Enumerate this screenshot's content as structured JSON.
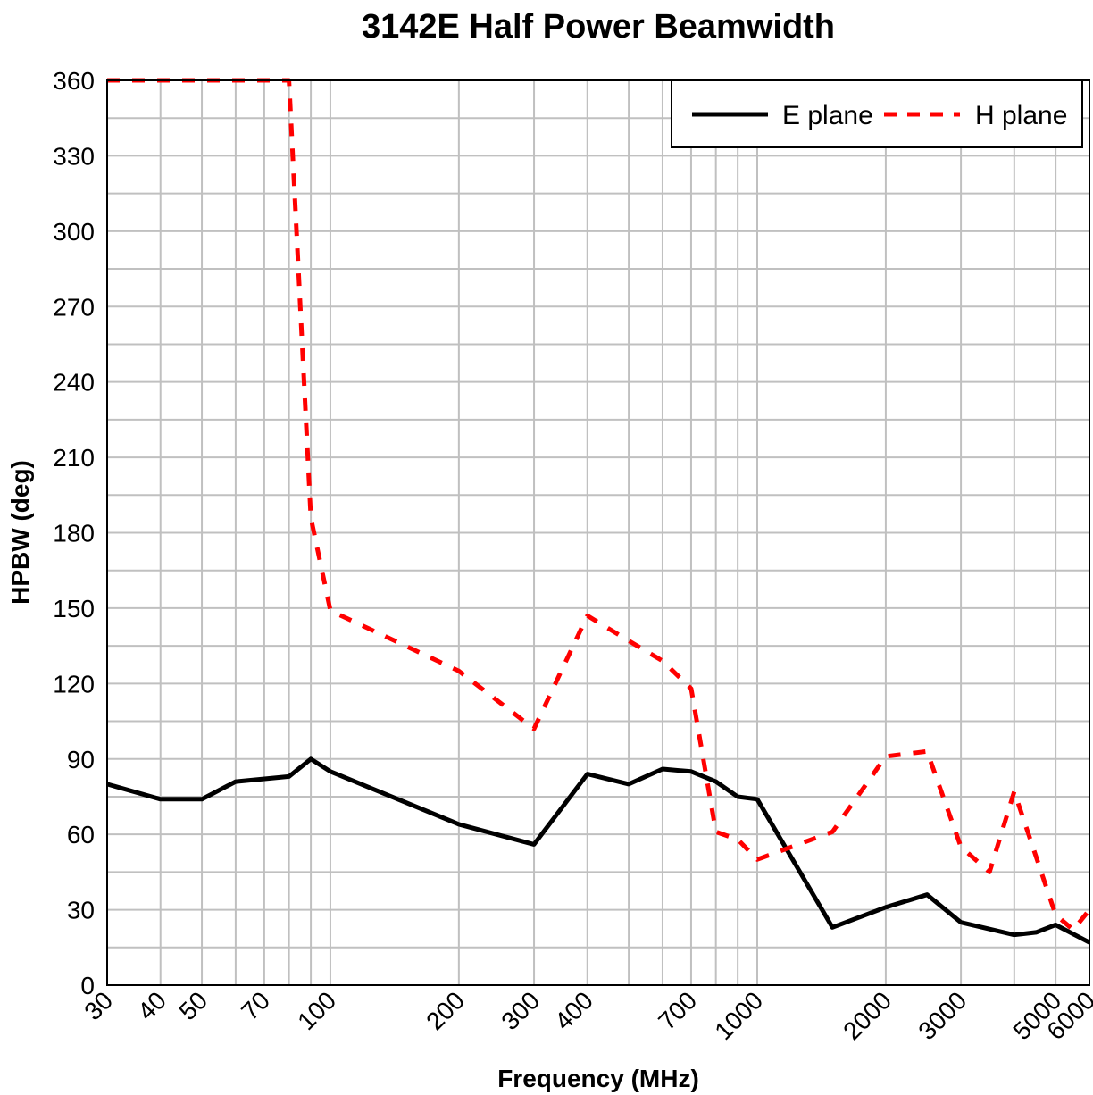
{
  "chart_data": {
    "type": "line",
    "title": "3142E Half Power Beamwidth",
    "xlabel": "Frequency (MHz)",
    "ylabel": "HPBW (deg)",
    "xscale": "log",
    "xlim": [
      30,
      6000
    ],
    "ylim": [
      0,
      360
    ],
    "grid": true,
    "legend_position": "top-right",
    "x_ticks": [
      30,
      40,
      50,
      70,
      100,
      200,
      300,
      400,
      700,
      1000,
      2000,
      3000,
      5000,
      6000
    ],
    "x_tick_labels": [
      "30",
      "40",
      "50",
      "70",
      "100",
      "200",
      "300",
      "400",
      "700",
      "1000",
      "2000",
      "3000",
      "5000",
      "6000"
    ],
    "y_ticks": [
      0,
      30,
      60,
      90,
      120,
      150,
      180,
      210,
      240,
      270,
      300,
      330,
      360
    ],
    "y_tick_labels": [
      "0",
      "30",
      "60",
      "90",
      "120",
      "150",
      "180",
      "210",
      "240",
      "270",
      "300",
      "330",
      "360"
    ],
    "series": [
      {
        "name": "E plane",
        "color": "#000000",
        "style": "solid",
        "x": [
          30,
          40,
          50,
          60,
          80,
          90,
          100,
          200,
          300,
          400,
          500,
          600,
          700,
          800,
          900,
          1000,
          1500,
          2000,
          2500,
          3000,
          4000,
          4500,
          5000,
          6000
        ],
        "y": [
          80,
          74,
          74,
          81,
          83,
          90,
          85,
          64,
          56,
          84,
          80,
          86,
          85,
          81,
          75,
          74,
          23,
          31,
          36,
          25,
          20,
          21,
          24,
          17
        ]
      },
      {
        "name": "H plane",
        "color": "#ff0000",
        "style": "dashed",
        "x": [
          30,
          40,
          50,
          60,
          70,
          80,
          90,
          100,
          150,
          200,
          300,
          400,
          500,
          600,
          700,
          800,
          900,
          1000,
          1500,
          2000,
          2500,
          3000,
          3500,
          4000,
          5000,
          5500,
          6000
        ],
        "y": [
          360,
          360,
          360,
          360,
          360,
          360,
          186,
          149,
          135,
          125,
          102,
          147,
          137,
          129,
          118,
          61,
          58,
          50,
          61,
          91,
          93,
          55,
          45,
          77,
          28,
          22,
          30
        ]
      }
    ]
  }
}
